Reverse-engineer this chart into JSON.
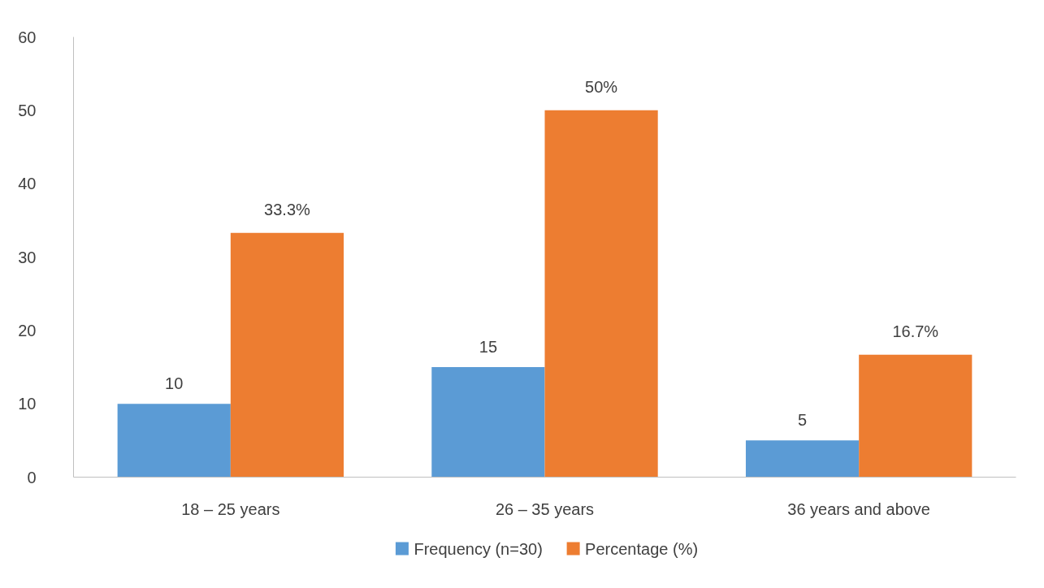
{
  "chart_data": {
    "type": "bar",
    "categories": [
      "18 – 25 years",
      "26 – 35 years",
      "36 years and above"
    ],
    "series": [
      {
        "name": "Frequency  (n=30)",
        "color": "#5b9bd5",
        "values": [
          10,
          15,
          5
        ],
        "value_labels": [
          "10",
          "15",
          "5"
        ]
      },
      {
        "name": "Percentage (%)",
        "color": "#ed7d31",
        "values": [
          33.3,
          50,
          16.7
        ],
        "value_labels": [
          "33.3%",
          "50%",
          "16.7%"
        ]
      }
    ],
    "ylim": [
      0,
      60
    ],
    "yticks": [
      0,
      10,
      20,
      30,
      40,
      50,
      60
    ],
    "grid": false,
    "legend": "bottom"
  }
}
